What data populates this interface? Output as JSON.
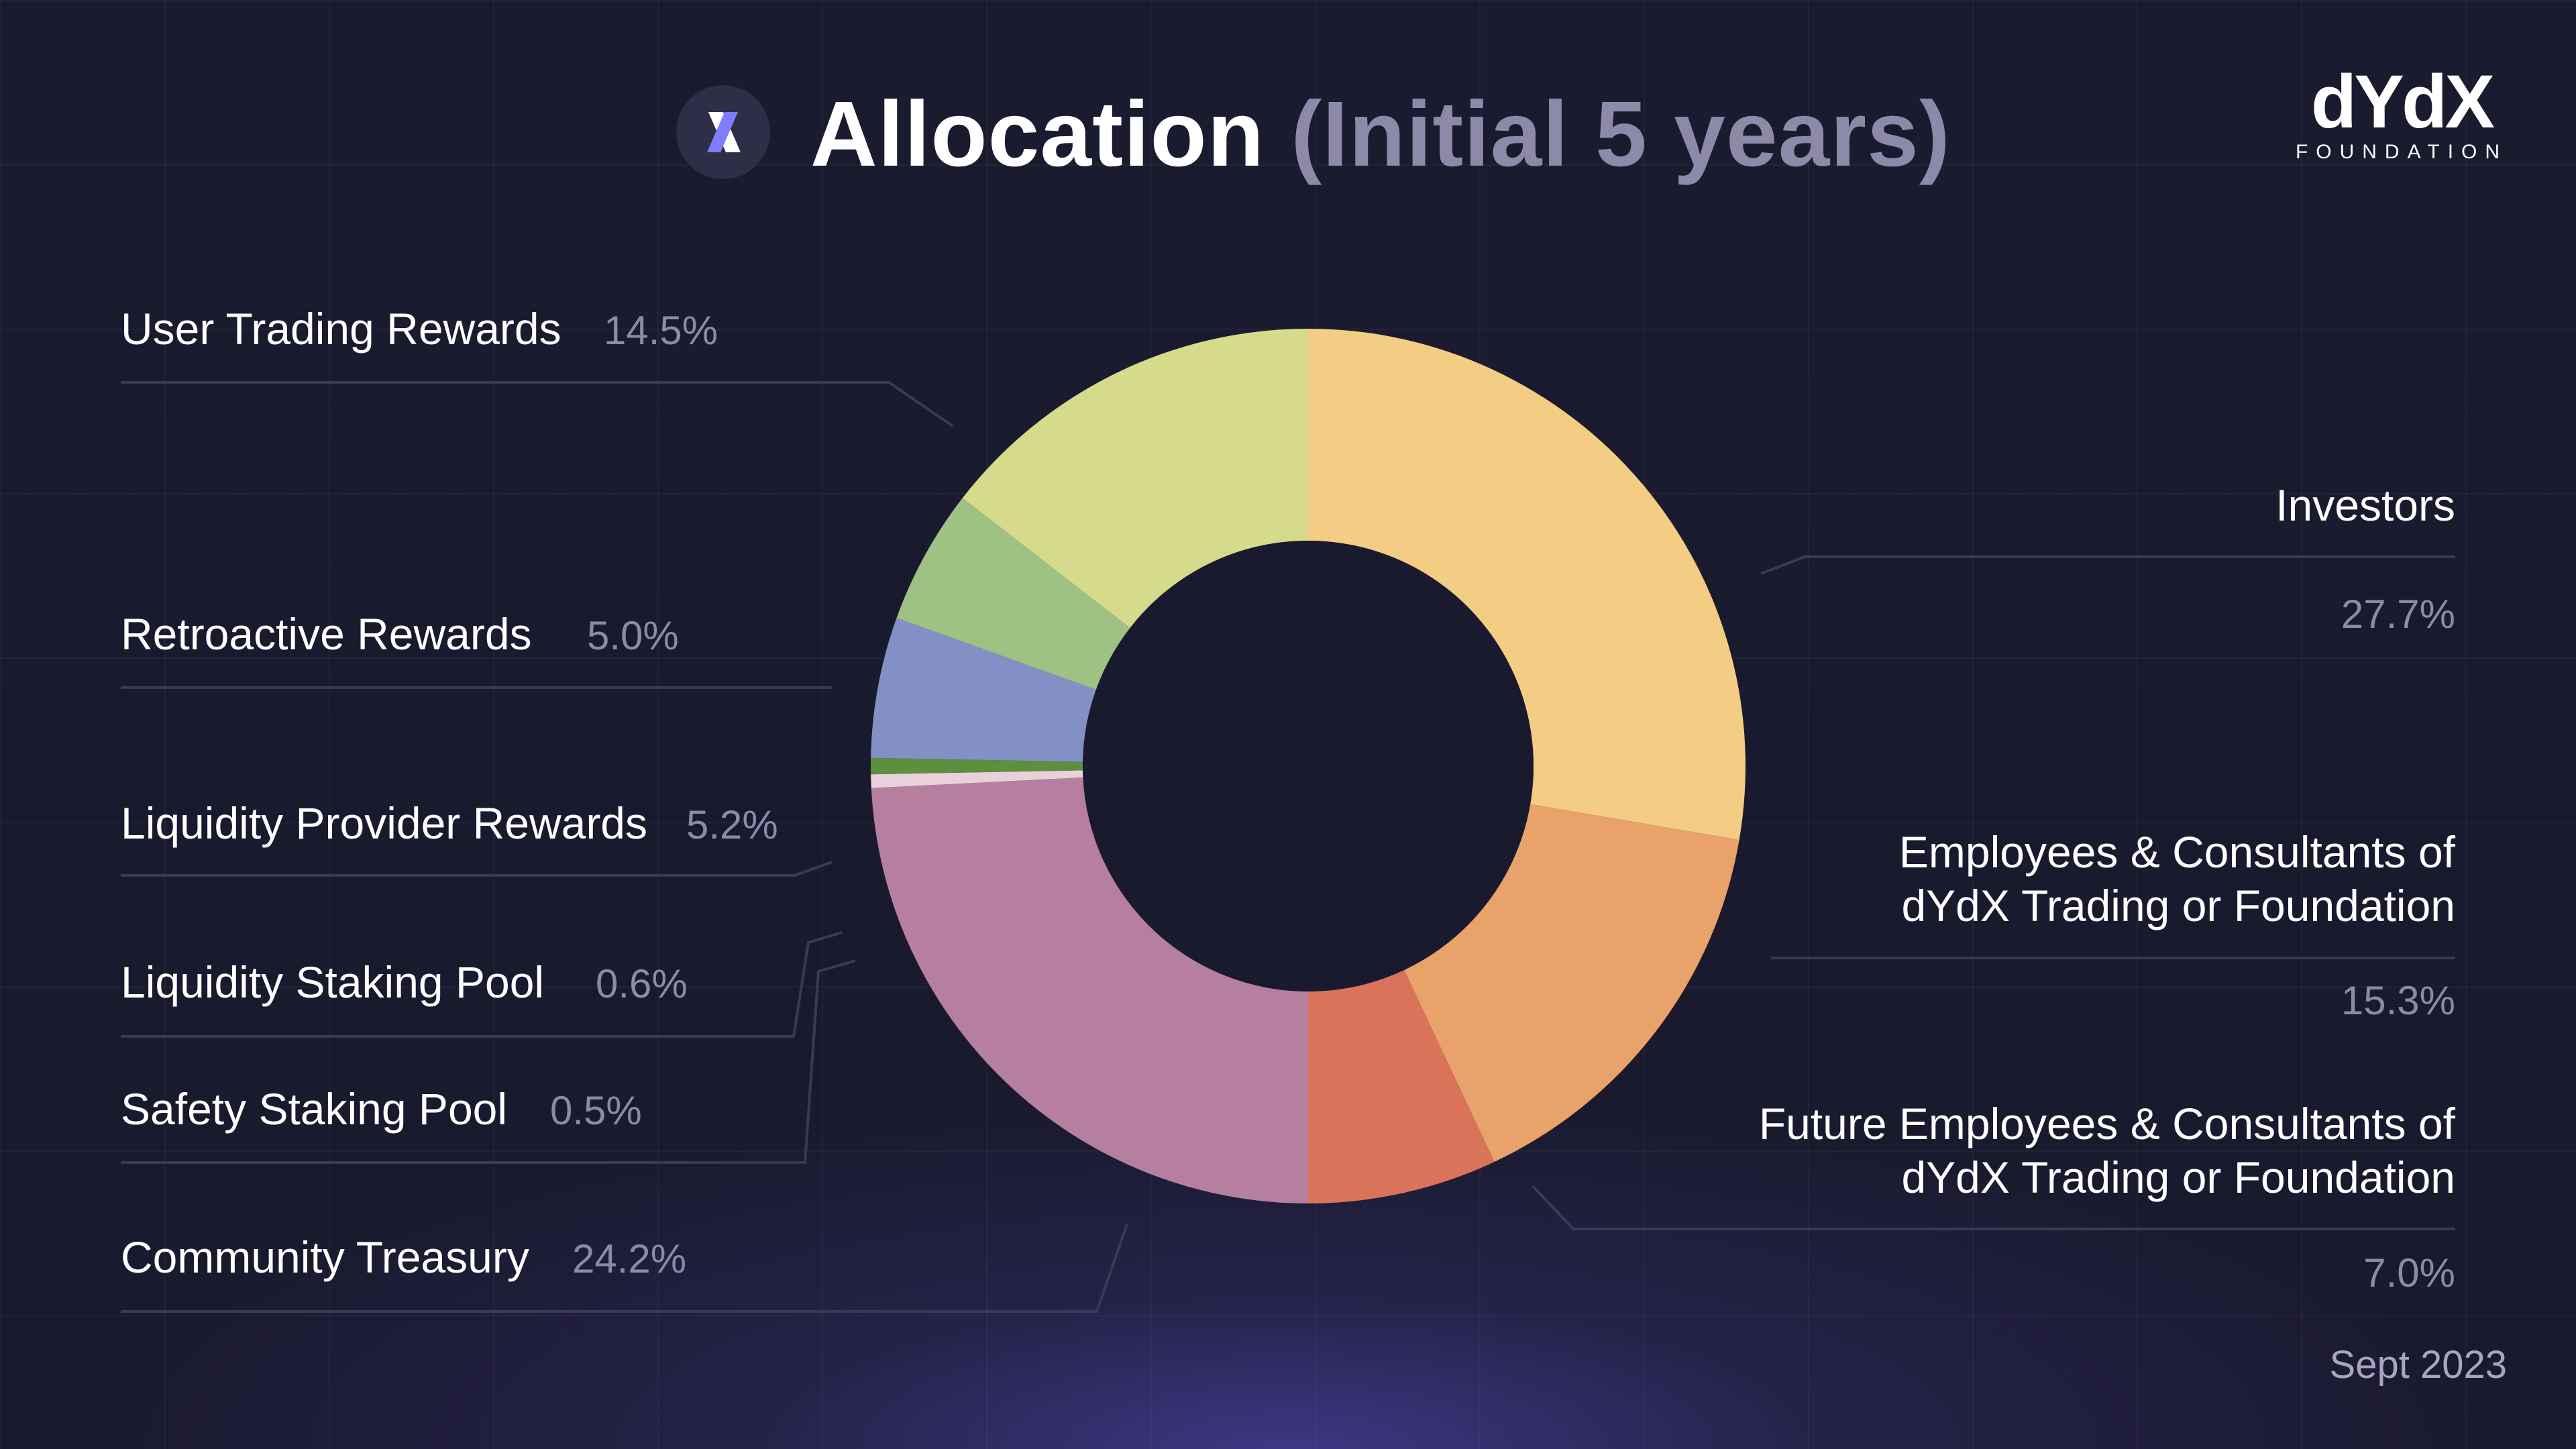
{
  "header": {
    "title": "Allocation",
    "subtitle": "(Initial 5 years)",
    "icon": "x-logo-icon"
  },
  "brand": {
    "name": "dYdX",
    "tagline": "FOUNDATION",
    "accent_color": "#6966ff"
  },
  "footer": {
    "date": "Sept 2023"
  },
  "chart_data": {
    "type": "pie",
    "style": "donut",
    "labels": [
      "Investors",
      "Employees & Consultants of dYdX Trading or Foundation",
      "Future Employees & Consultants of dYdX Trading or Foundation",
      "Community Treasury",
      "Safety Staking Pool",
      "Liquidity Staking Pool",
      "Liquidity Provider Rewards",
      "Retroactive Rewards",
      "User Trading Rewards"
    ],
    "values": [
      27.7,
      15.3,
      7.0,
      24.2,
      0.5,
      0.6,
      5.2,
      5.0,
      14.5
    ],
    "value_labels": [
      "27.7%",
      "15.3%",
      "7.0%",
      "24.2%",
      "0.5%",
      "0.6%",
      "5.2%",
      "5.0%",
      "14.5%"
    ],
    "colors": [
      "#f2cd83",
      "#e8a26a",
      "#d9745a",
      "#b67fa0",
      "#ead0da",
      "#5c8f3e",
      "#8390c5",
      "#9dc283",
      "#d6da8b"
    ],
    "start": "12 o'clock",
    "direction": "clockwise"
  }
}
